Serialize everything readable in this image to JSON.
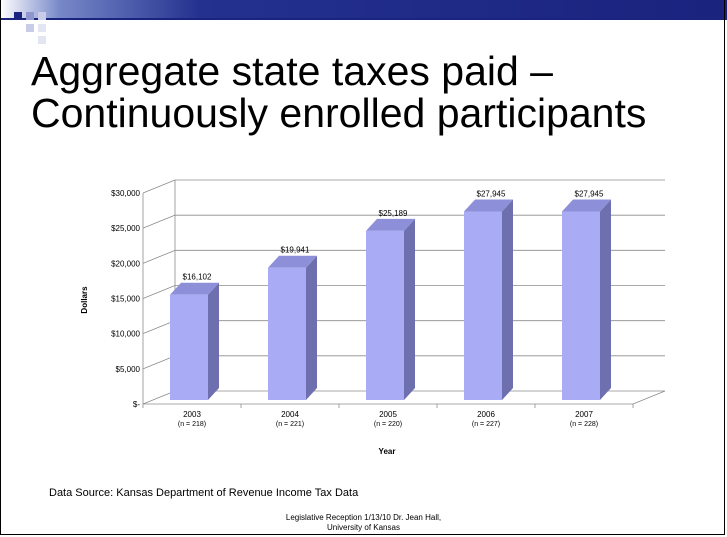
{
  "slide": {
    "title_line1": "Aggregate state taxes paid –",
    "title_line2": "Continuously enrolled participants",
    "source": "Data Source: Kansas Department of Revenue Income Tax Data",
    "footer_line1": "Legislative Reception 1/13/10  Dr. Jean Hall,",
    "footer_line2": "University of Kansas",
    "accent_color": "#1a237e"
  },
  "chart_data": {
    "type": "bar",
    "categories": [
      "2003",
      "2004",
      "2005",
      "2006",
      "2007"
    ],
    "subcategories": [
      "(n = 218)",
      "(n = 221)",
      "(n = 220)",
      "(n = 227)",
      "(n = 228)"
    ],
    "values": [
      16102,
      19941,
      25189,
      27945,
      27945
    ],
    "data_labels": [
      "$16,102",
      "$19,941",
      "$25,189",
      "$27,945",
      "$27,945"
    ],
    "xlabel": "Year",
    "ylabel": "Dollars",
    "ylim": [
      0,
      30000
    ],
    "yticks": [
      0,
      5000,
      10000,
      15000,
      20000,
      25000,
      30000
    ],
    "ytick_labels": [
      "$-",
      "$5,000",
      "$10,000",
      "$15,000",
      "$20,000",
      "$25,000",
      "$30,000"
    ],
    "grid": true,
    "bar_color": "#a9acf5",
    "bar_side_color": "#6d6fae",
    "bar_top_color": "#8d90d8"
  }
}
